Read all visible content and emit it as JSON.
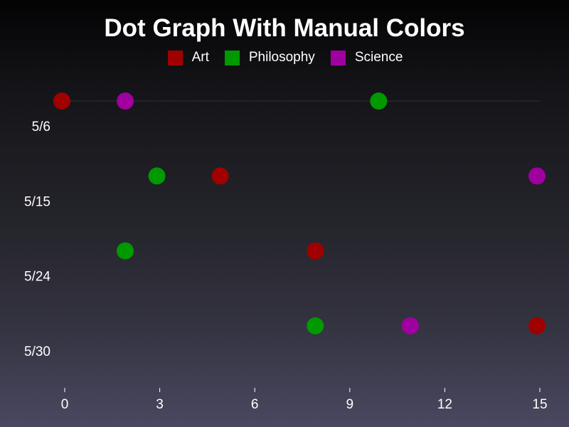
{
  "chart_data": {
    "type": "scatter",
    "title": "Dot Graph With Manual Colors",
    "legend_position": "top",
    "categories": [
      "5/6",
      "5/15",
      "5/24",
      "5/30"
    ],
    "xlim": [
      0,
      15
    ],
    "xticks": [
      "0",
      "3",
      "6",
      "9",
      "12",
      "15"
    ],
    "series": [
      {
        "name": "Art",
        "color": "#a00000",
        "values": [
          0,
          5,
          8,
          15
        ]
      },
      {
        "name": "Philosophy",
        "color": "#009900",
        "values": [
          10,
          3,
          2,
          8
        ]
      },
      {
        "name": "Science",
        "color": "#a000a0",
        "values": [
          2,
          15,
          null,
          11
        ]
      }
    ]
  }
}
